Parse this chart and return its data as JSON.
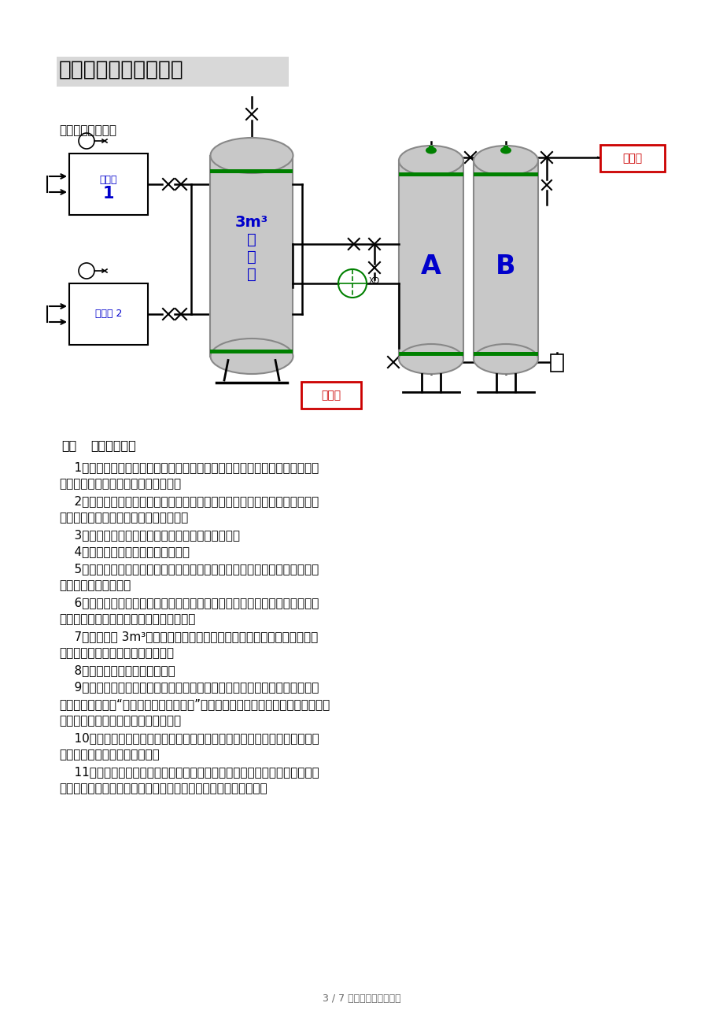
{
  "title": "空压站系统的开车方案",
  "subtitle": "空压站流程示意图",
  "label_yibiaofeng": "仪表风",
  "label_gongyefeng": "工业风",
  "label_huanchong": "3m³\n缓\n冲\n罐",
  "label_kongya1_line1": "空压机",
  "label_kongya1_line2": "1",
  "label_kongya2": "空压机 2",
  "label_A": "A",
  "label_B": "B",
  "section_num": "一、",
  "section_body": "空压机的操作",
  "paragraphs": [
    "    1、确认空压站所有设备及附件、管道的安装均符合设计要求，各系统管线均已打压试漏完毕，达到规定标准。",
    "    2、空压站现场及站外设备周围的工程物资及用具均已清理完毕，巡检通道畅通无阻，无危及人身的不安全因素。",
    "    3、确认所有设备都已单机试车运行正常，无故障。",
    "    4、确认控制室内电器柜闸已闭合。",
    "    5、确认空压机控器有得电显示，压缩机各项控制参数已正确设置，编程完毕，且无故障显示。",
    "    6、确认气路系统所有阀门均能灵活启闭，且在规定位置（即试运行空压机的标有该机位号的阀门应在开启状态）。",
    "    7、开启通往 3m³缓冲罐的进气阀，打开过滤器的进出口阀，关闭干燥器的进口阀，打开放空阀先吹扫。",
    "    8、检查空压机油位正常位置。",
    "    9、参加试运行设备操作的人员均需经过设备厂家和有关技术人员的专项培训，并人手一册“空压站试运行方案手册”，且能清晰记住空压站所有设备的安全操作规程、明确各系统的工艺流程。",
    "    10、参加试运行的有关部门及领导均已到位（包括施工安装单位、厂家人员及机动、生产有关部门）。",
    "    11、上述各项工作确认完毕后，按空压机启动程序启动需试运行空压机，严密观察单控器显晶屏显示的显示的对应数値应在控制范围内。"
  ],
  "footer": "3 / 7 文档可自由编辑打印",
  "bg_color": "#ffffff",
  "text_color": "#000000",
  "blue_color": "#0000cc",
  "red_color": "#cc0000",
  "green_color": "#008000",
  "tank_color": "#c8c8c8",
  "tank_edge": "#888888"
}
